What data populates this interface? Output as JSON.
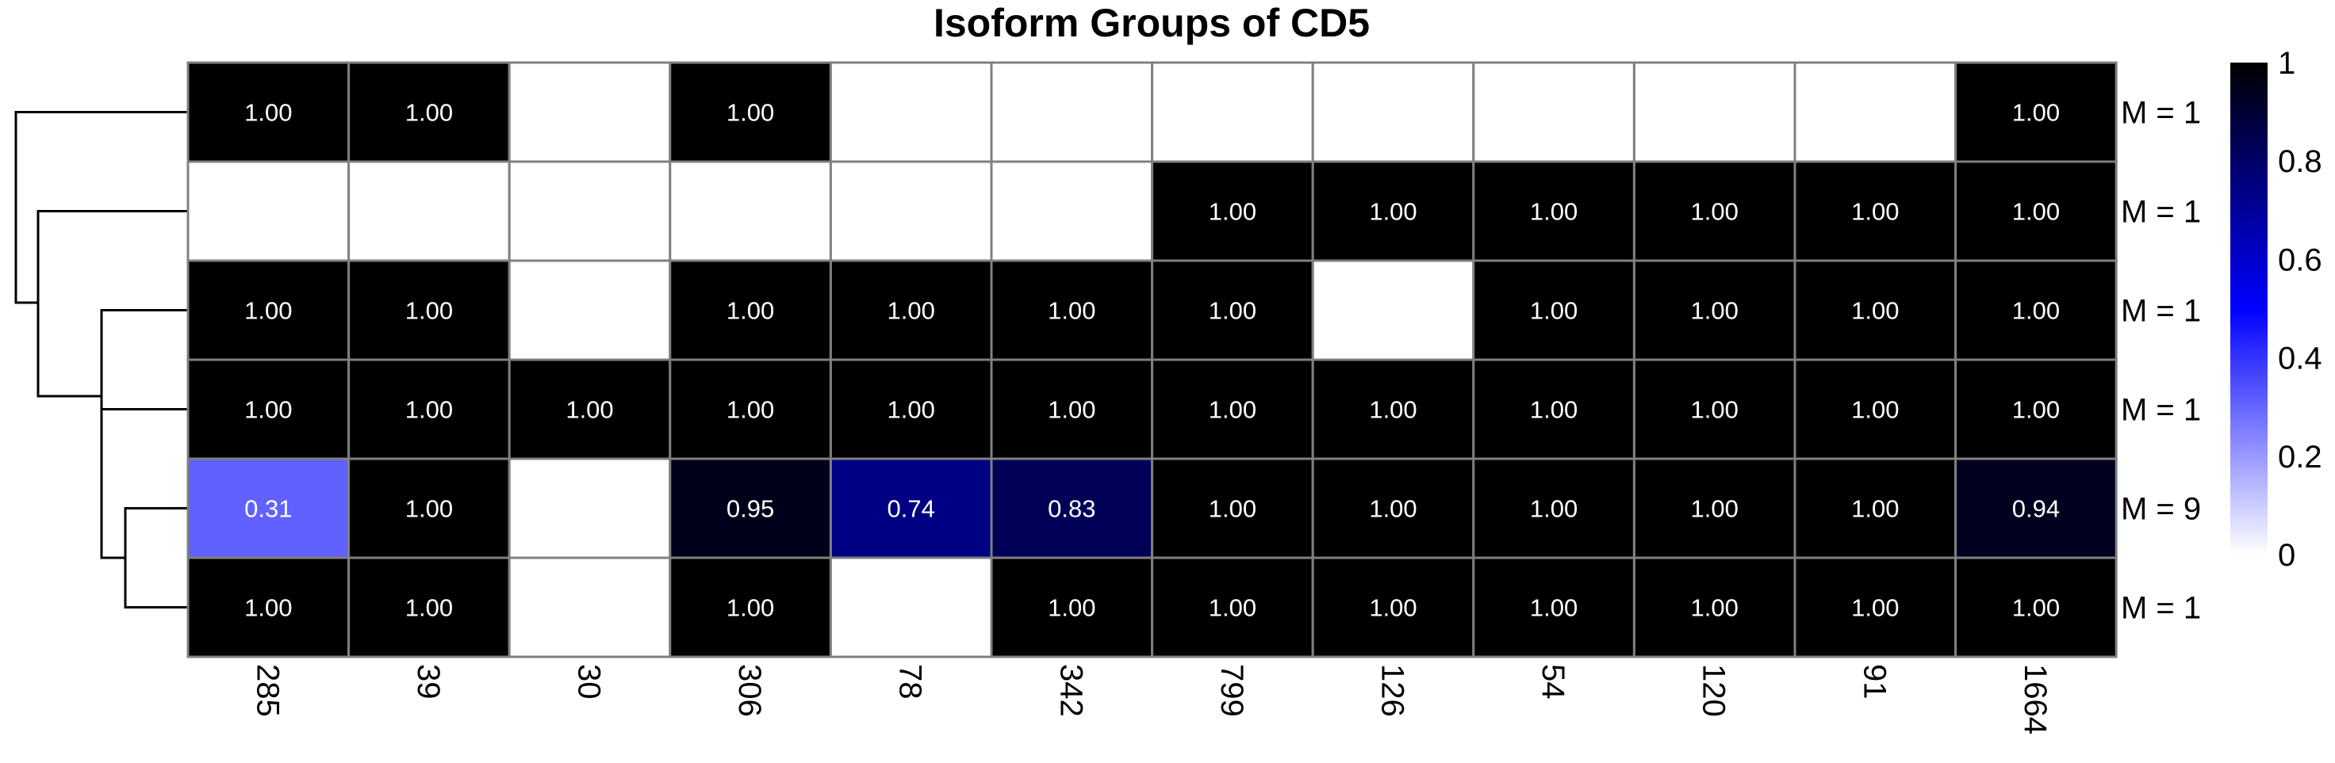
{
  "chart_data": {
    "type": "heatmap",
    "title": "Isoform Groups of CD5",
    "columns": [
      "285",
      "39",
      "30",
      "306",
      "78",
      "342",
      "799",
      "126",
      "54",
      "120",
      "91",
      "1664"
    ],
    "rows": [
      {
        "label": "M = 1",
        "values": [
          1,
          1,
          0,
          1,
          0,
          0,
          0,
          0,
          0,
          0,
          0,
          1
        ],
        "labels": [
          "1.00",
          "1.00",
          "",
          "1.00",
          "",
          "",
          "",
          "",
          "",
          "",
          "",
          "1.00"
        ]
      },
      {
        "label": "M = 1",
        "values": [
          0,
          0,
          0,
          0,
          0,
          0,
          1,
          1,
          1,
          1,
          1,
          1
        ],
        "labels": [
          "",
          "",
          "",
          "",
          "",
          "",
          "1.00",
          "1.00",
          "1.00",
          "1.00",
          "1.00",
          "1.00"
        ]
      },
      {
        "label": "M = 1",
        "values": [
          1,
          1,
          0,
          1,
          1,
          1,
          1,
          0,
          1,
          1,
          1,
          1
        ],
        "labels": [
          "1.00",
          "1.00",
          "",
          "1.00",
          "1.00",
          "1.00",
          "1.00",
          "",
          "1.00",
          "1.00",
          "1.00",
          "1.00"
        ]
      },
      {
        "label": "M = 1",
        "values": [
          1,
          1,
          1,
          1,
          1,
          1,
          1,
          1,
          1,
          1,
          1,
          1
        ],
        "labels": [
          "1.00",
          "1.00",
          "1.00",
          "1.00",
          "1.00",
          "1.00",
          "1.00",
          "1.00",
          "1.00",
          "1.00",
          "1.00",
          "1.00"
        ]
      },
      {
        "label": "M = 9",
        "values": [
          0.31,
          1,
          0,
          0.95,
          0.74,
          0.83,
          1,
          1,
          1,
          1,
          1,
          0.94
        ],
        "labels": [
          "0.31",
          "1.00",
          "",
          "0.95",
          "0.74",
          "0.83",
          "1.00",
          "1.00",
          "1.00",
          "1.00",
          "1.00",
          "0.94"
        ]
      },
      {
        "label": "M = 1",
        "values": [
          1,
          1,
          0,
          1,
          0,
          1,
          1,
          1,
          1,
          1,
          1,
          1
        ],
        "labels": [
          "1.00",
          "1.00",
          "",
          "1.00",
          "",
          "1.00",
          "1.00",
          "1.00",
          "1.00",
          "1.00",
          "1.00",
          "1.00"
        ]
      }
    ],
    "colorbar": {
      "range": [
        0,
        1
      ],
      "ticks": [
        "0",
        "0.2",
        "0.4",
        "0.6",
        "0.8",
        "1"
      ],
      "colors": [
        "#ffffff",
        "#0000ff",
        "#000000"
      ]
    },
    "dendrogram": "rows",
    "grid_color": "#808080"
  }
}
